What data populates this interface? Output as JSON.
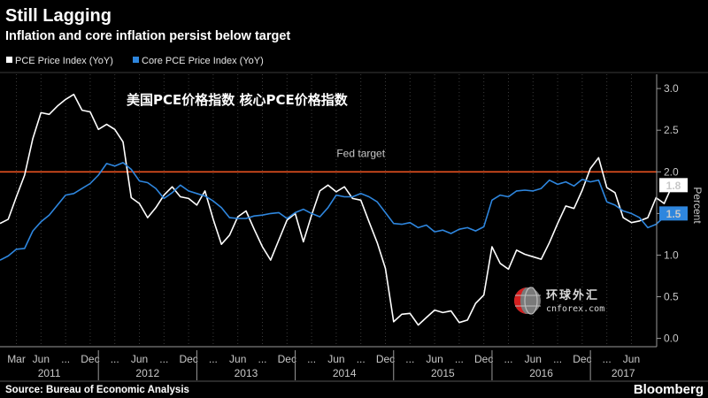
{
  "header": {
    "title": "Still Lagging",
    "subtitle": "Inflation and core inflation persist below target"
  },
  "overlay": {
    "cn_label": "美国PCE价格指数   核心PCE价格指数",
    "watermark_name": "环球外汇",
    "watermark_url": "cnforex.com",
    "watermark_icon": "globe-logo-icon"
  },
  "footer": {
    "source": "Source: Bureau of Economic Analysis",
    "brand": "Bloomberg"
  },
  "chart_data": {
    "type": "line",
    "title": "Still Lagging",
    "subtitle": "Inflation and core inflation persist below target",
    "ylabel": "Percent",
    "ylim": [
      -0.1,
      3.15
    ],
    "xlim": [
      "2011-01",
      "2017-08"
    ],
    "yticks": [
      "0.0",
      "0.5",
      "1.0",
      "1.5",
      "2.0",
      "2.5",
      "3.0"
    ],
    "legend_position": "top-left",
    "grid": "vertical-dotted",
    "x_tick_labels": [
      {
        "m": "2011-03",
        "label": "Mar"
      },
      {
        "m": "2011-06",
        "label": "Jun"
      },
      {
        "m": "2011-09",
        "label": "..."
      },
      {
        "m": "2011-12",
        "label": "Dec"
      },
      {
        "m": "2012-03",
        "label": "..."
      },
      {
        "m": "2012-06",
        "label": "Jun"
      },
      {
        "m": "2012-09",
        "label": "..."
      },
      {
        "m": "2012-12",
        "label": "Dec"
      },
      {
        "m": "2013-03",
        "label": "..."
      },
      {
        "m": "2013-06",
        "label": "Jun"
      },
      {
        "m": "2013-09",
        "label": "..."
      },
      {
        "m": "2013-12",
        "label": "Dec"
      },
      {
        "m": "2014-03",
        "label": "..."
      },
      {
        "m": "2014-06",
        "label": "Jun"
      },
      {
        "m": "2014-09",
        "label": "..."
      },
      {
        "m": "2014-12",
        "label": "Dec"
      },
      {
        "m": "2015-03",
        "label": "..."
      },
      {
        "m": "2015-06",
        "label": "Jun"
      },
      {
        "m": "2015-09",
        "label": "..."
      },
      {
        "m": "2015-12",
        "label": "Dec"
      },
      {
        "m": "2016-03",
        "label": "..."
      },
      {
        "m": "2016-06",
        "label": "Jun"
      },
      {
        "m": "2016-09",
        "label": "..."
      },
      {
        "m": "2016-12",
        "label": "Dec"
      },
      {
        "m": "2017-03",
        "label": "..."
      },
      {
        "m": "2017-06",
        "label": "Jun"
      },
      {
        "m": "2017-09",
        "label": "..."
      }
    ],
    "year_labels": [
      {
        "year": "2011",
        "from": "2011-01",
        "to": "2012-01"
      },
      {
        "year": "2012",
        "from": "2012-01",
        "to": "2013-01"
      },
      {
        "year": "2013",
        "from": "2013-01",
        "to": "2014-01"
      },
      {
        "year": "2014",
        "from": "2014-01",
        "to": "2015-01"
      },
      {
        "year": "2015",
        "from": "2015-01",
        "to": "2016-01"
      },
      {
        "year": "2016",
        "from": "2016-01",
        "to": "2017-01"
      },
      {
        "year": "2017",
        "from": "2017-01",
        "to": "2017-09"
      }
    ],
    "reference_line": {
      "label": "Fed target",
      "value": 2.0,
      "color": "#e8521f"
    },
    "series": [
      {
        "name": "PCE Price Index (YoY)",
        "color": "#ffffff",
        "last_label": "1.8",
        "start": "2011-01",
        "values": [
          1.38,
          1.43,
          1.7,
          1.96,
          2.4,
          2.71,
          2.69,
          2.79,
          2.87,
          2.93,
          2.74,
          2.72,
          2.51,
          2.57,
          2.51,
          2.36,
          1.69,
          1.62,
          1.45,
          1.57,
          1.72,
          1.82,
          1.7,
          1.68,
          1.6,
          1.77,
          1.43,
          1.13,
          1.24,
          1.46,
          1.53,
          1.31,
          1.1,
          0.94,
          1.18,
          1.42,
          1.5,
          1.16,
          1.48,
          1.77,
          1.84,
          1.76,
          1.82,
          1.68,
          1.66,
          1.4,
          1.15,
          0.84,
          0.2,
          0.29,
          0.3,
          0.16,
          0.25,
          0.34,
          0.31,
          0.33,
          0.19,
          0.22,
          0.42,
          0.52,
          1.1,
          0.9,
          0.83,
          1.06,
          1.01,
          0.98,
          0.95,
          1.15,
          1.38,
          1.59,
          1.56,
          1.78,
          2.04,
          2.17,
          1.81,
          1.75,
          1.45,
          1.39,
          1.41,
          1.45,
          1.69,
          1.62,
          1.84
        ]
      },
      {
        "name": "Core PCE Price Index (YoY)",
        "color": "#2e86de",
        "last_label": "1.5",
        "start": "2011-01",
        "values": [
          0.94,
          0.99,
          1.07,
          1.08,
          1.29,
          1.4,
          1.48,
          1.6,
          1.72,
          1.74,
          1.8,
          1.86,
          1.96,
          2.1,
          2.07,
          2.11,
          2.03,
          1.89,
          1.87,
          1.8,
          1.68,
          1.75,
          1.84,
          1.77,
          1.74,
          1.71,
          1.65,
          1.57,
          1.45,
          1.44,
          1.44,
          1.47,
          1.48,
          1.5,
          1.51,
          1.44,
          1.51,
          1.55,
          1.5,
          1.46,
          1.57,
          1.72,
          1.7,
          1.7,
          1.74,
          1.7,
          1.64,
          1.51,
          1.38,
          1.37,
          1.39,
          1.33,
          1.36,
          1.28,
          1.3,
          1.26,
          1.31,
          1.33,
          1.29,
          1.34,
          1.66,
          1.72,
          1.7,
          1.77,
          1.78,
          1.77,
          1.8,
          1.9,
          1.85,
          1.88,
          1.83,
          1.91,
          1.88,
          1.9,
          1.64,
          1.6,
          1.53,
          1.5,
          1.45,
          1.33,
          1.37,
          1.46,
          1.5
        ]
      }
    ]
  }
}
